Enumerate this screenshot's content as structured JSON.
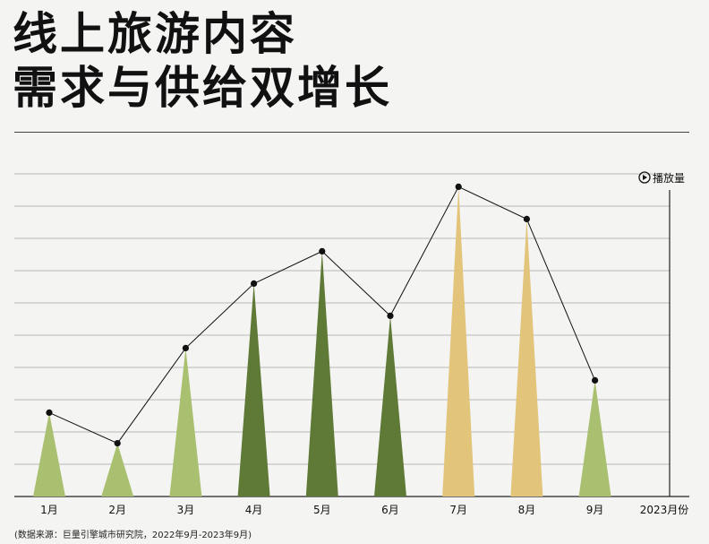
{
  "title": {
    "line1": "线上旅游内容",
    "line2": "需求与供给双增长"
  },
  "source": "(数据来源：巨量引擎城市研究院，2022年9月-2023年9月)",
  "colors": {
    "background": "#f4f4f2",
    "light_green": "#a9c070",
    "dark_green": "#5f7a37",
    "gold": "#e2c47a",
    "line": "#111111",
    "grid": "#b8b8b8"
  },
  "chart_data": {
    "type": "line",
    "title": "",
    "xlabel": "2023月份",
    "ylabel": "播放量",
    "categories": [
      "1月",
      "2月",
      "3月",
      "4月",
      "5月",
      "6月",
      "7月",
      "8月",
      "9月"
    ],
    "ylim": [
      0,
      10
    ],
    "grid": true,
    "series": [
      {
        "values": [
          2.6,
          1.65,
          4.6,
          6.6,
          7.6,
          5.6,
          9.6,
          8.6,
          3.6
        ],
        "marker_colors": [
          "light_green",
          "light_green",
          "light_green",
          "dark_green",
          "dark_green",
          "dark_green",
          "gold",
          "gold",
          "light_green"
        ]
      }
    ]
  }
}
